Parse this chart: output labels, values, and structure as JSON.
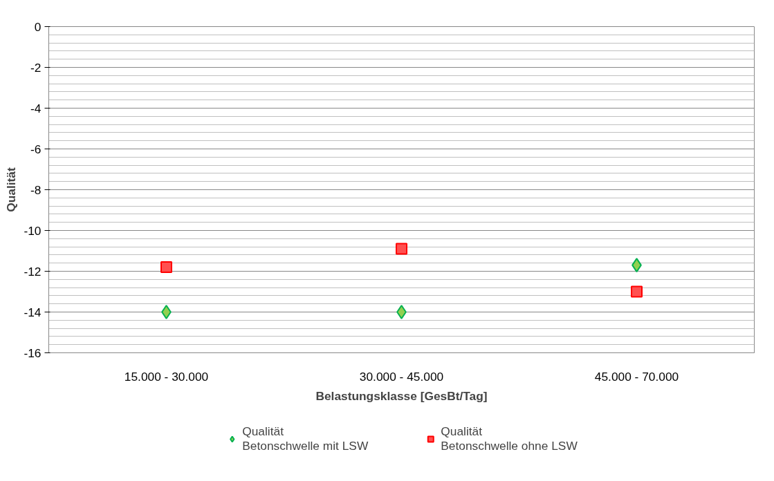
{
  "chart_data": {
    "type": "scatter",
    "xlabel": "Belastungsklasse [GesBt/Tag]",
    "ylabel": "Qualität",
    "categories": [
      "15.000 - 30.000",
      "30.000 - 45.000",
      "45.000 - 70.000"
    ],
    "series": [
      {
        "name": "Qualität\nBetonschwelle mit LSW",
        "color": "#92d050",
        "marker": "diamond",
        "values": [
          -14.0,
          -14.0,
          -11.7
        ]
      },
      {
        "name": "Qualität\nBetonschwelle ohne LSW",
        "color": "#ff5050",
        "marker": "square",
        "values": [
          -11.8,
          -10.9,
          -13.0
        ]
      }
    ],
    "ylim": [
      -16,
      0
    ],
    "yticks": [
      0,
      -2,
      -4,
      -6,
      -8,
      -10,
      -12,
      -14,
      -16
    ],
    "grid": "y",
    "legend": "bottom"
  }
}
